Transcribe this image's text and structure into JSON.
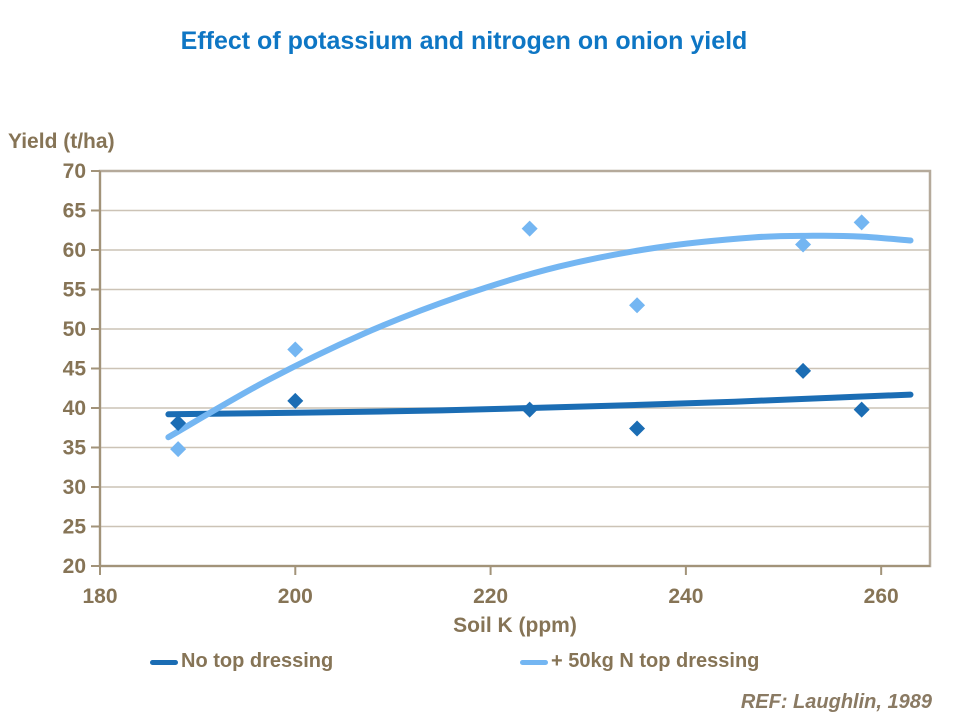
{
  "ref": "REF: Laughlin, 1989",
  "colors": {
    "title": "#0e76c4",
    "axis_text": "#867456",
    "gridline": "#ccc3b6",
    "frame": "#b5aa9b",
    "axis_line": "#a29379",
    "background": "#ffffff"
  },
  "legend": {
    "position": "bottom",
    "items": [
      {
        "label": "No top dressing"
      },
      {
        "label": "+ 50kg N top dressing"
      }
    ]
  },
  "chart_data": {
    "type": "scatter",
    "title": "Effect of potassium and nitrogen on onion yield",
    "xlabel": "Soil K (ppm)",
    "ylabel": "Yield (t/ha)",
    "xlim": [
      180,
      265
    ],
    "ylim": [
      20,
      70
    ],
    "xticks": [
      180,
      200,
      220,
      240,
      260
    ],
    "yticks": [
      20,
      25,
      30,
      35,
      40,
      45,
      50,
      55,
      60,
      65,
      70
    ],
    "grid": "horizontal",
    "legend_position": "bottom",
    "series": [
      {
        "name": "No top dressing",
        "color": "#1b6db4",
        "marker": "diamond",
        "points": [
          [
            188,
            38.1
          ],
          [
            200,
            40.9
          ],
          [
            224,
            39.8
          ],
          [
            235,
            37.4
          ],
          [
            252,
            44.7
          ],
          [
            258,
            39.8
          ]
        ],
        "trend": [
          [
            187,
            39.2
          ],
          [
            200,
            39.4
          ],
          [
            215,
            39.7
          ],
          [
            230,
            40.2
          ],
          [
            245,
            40.8
          ],
          [
            255,
            41.3
          ],
          [
            263,
            41.7
          ]
        ]
      },
      {
        "name": "+ 50kg N top dressing",
        "color": "#74b6f2",
        "marker": "diamond",
        "points": [
          [
            188,
            34.8
          ],
          [
            200,
            47.4
          ],
          [
            224,
            62.7
          ],
          [
            235,
            53.0
          ],
          [
            252,
            60.7
          ],
          [
            258,
            63.5
          ]
        ],
        "trend": [
          [
            187,
            36.3
          ],
          [
            197,
            43.4
          ],
          [
            207,
            49.4
          ],
          [
            217,
            54.2
          ],
          [
            227,
            57.9
          ],
          [
            237,
            60.3
          ],
          [
            247,
            61.6
          ],
          [
            253,
            61.8
          ],
          [
            258,
            61.7
          ],
          [
            263,
            61.2
          ]
        ]
      }
    ]
  }
}
